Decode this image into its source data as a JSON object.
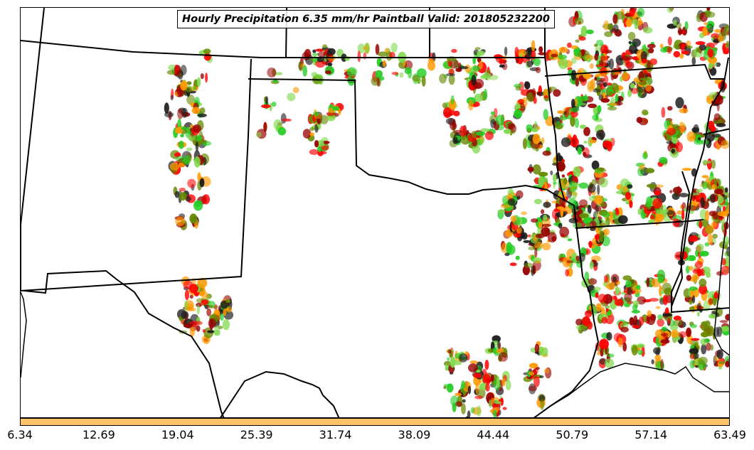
{
  "title": "Hourly Precipitation 6.35 mm/hr Paintball Valid: 201805232200",
  "colorbar": {
    "color": "#ffc266",
    "ticks": [
      "6.34",
      "12.69",
      "19.04",
      "25.39",
      "31.74",
      "38.09",
      "44.44",
      "50.79",
      "57.14",
      "63.49"
    ]
  },
  "paintball_colors": [
    "#ff0000",
    "#22cc22",
    "#ff9900",
    "#990000",
    "#1a1a1a",
    "#668800",
    "#7fd94c"
  ]
}
